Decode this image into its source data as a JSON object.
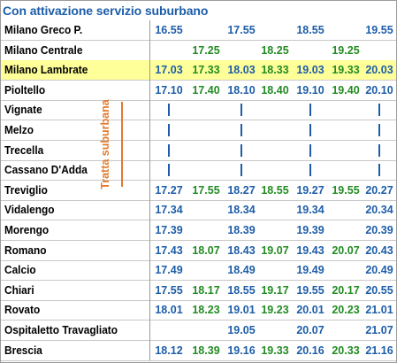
{
  "title": "Con attivazione servizio suburbano",
  "vertical_label": "Tratta suburbana",
  "colors": {
    "blue": "#1d5da8",
    "green": "#228b22",
    "highlight": "#ffff99",
    "orange": "#e07b30"
  },
  "rows": [
    {
      "station": "Milano Greco P.",
      "highlight": false,
      "times": [
        {
          "v": "16.55",
          "c": "blue"
        },
        {
          "v": "",
          "c": "green"
        },
        {
          "v": "17.55",
          "c": "blue"
        },
        {
          "v": "",
          "c": "green"
        },
        {
          "v": "18.55",
          "c": "blue"
        },
        {
          "v": "",
          "c": "green"
        },
        {
          "v": "19.55",
          "c": "blue"
        }
      ]
    },
    {
      "station": "Milano Centrale",
      "highlight": false,
      "times": [
        {
          "v": "",
          "c": "blue"
        },
        {
          "v": "17.25",
          "c": "green"
        },
        {
          "v": "",
          "c": "blue"
        },
        {
          "v": "18.25",
          "c": "green"
        },
        {
          "v": "",
          "c": "blue"
        },
        {
          "v": "19.25",
          "c": "green"
        },
        {
          "v": "",
          "c": "blue"
        }
      ]
    },
    {
      "station": "Milano Lambrate",
      "highlight": true,
      "times": [
        {
          "v": "17.03",
          "c": "blue"
        },
        {
          "v": "17.33",
          "c": "green"
        },
        {
          "v": "18.03",
          "c": "blue"
        },
        {
          "v": "18.33",
          "c": "green"
        },
        {
          "v": "19.03",
          "c": "blue"
        },
        {
          "v": "19.33",
          "c": "green"
        },
        {
          "v": "20.03",
          "c": "blue"
        }
      ]
    },
    {
      "station": "Pioltello",
      "highlight": false,
      "times": [
        {
          "v": "17.10",
          "c": "blue"
        },
        {
          "v": "17.40",
          "c": "green"
        },
        {
          "v": "18.10",
          "c": "blue"
        },
        {
          "v": "18.40",
          "c": "green"
        },
        {
          "v": "19.10",
          "c": "blue"
        },
        {
          "v": "19.40",
          "c": "green"
        },
        {
          "v": "20.10",
          "c": "blue"
        }
      ]
    },
    {
      "station": "Vignate",
      "highlight": false,
      "times": [
        {
          "v": "|",
          "c": "blue"
        },
        {
          "v": "",
          "c": "green"
        },
        {
          "v": "|",
          "c": "blue"
        },
        {
          "v": "",
          "c": "green"
        },
        {
          "v": "|",
          "c": "blue"
        },
        {
          "v": "",
          "c": "green"
        },
        {
          "v": "|",
          "c": "blue"
        }
      ]
    },
    {
      "station": "Melzo",
      "highlight": false,
      "times": [
        {
          "v": "|",
          "c": "blue"
        },
        {
          "v": "",
          "c": "green"
        },
        {
          "v": "|",
          "c": "blue"
        },
        {
          "v": "",
          "c": "green"
        },
        {
          "v": "|",
          "c": "blue"
        },
        {
          "v": "",
          "c": "green"
        },
        {
          "v": "|",
          "c": "blue"
        }
      ]
    },
    {
      "station": "Trecella",
      "highlight": false,
      "times": [
        {
          "v": "|",
          "c": "blue"
        },
        {
          "v": "",
          "c": "green"
        },
        {
          "v": "|",
          "c": "blue"
        },
        {
          "v": "",
          "c": "green"
        },
        {
          "v": "|",
          "c": "blue"
        },
        {
          "v": "",
          "c": "green"
        },
        {
          "v": "|",
          "c": "blue"
        }
      ]
    },
    {
      "station": "Cassano D'Adda",
      "highlight": false,
      "times": [
        {
          "v": "|",
          "c": "blue"
        },
        {
          "v": "",
          "c": "green"
        },
        {
          "v": "|",
          "c": "blue"
        },
        {
          "v": "",
          "c": "green"
        },
        {
          "v": "|",
          "c": "blue"
        },
        {
          "v": "",
          "c": "green"
        },
        {
          "v": "|",
          "c": "blue"
        }
      ]
    },
    {
      "station": "Treviglio",
      "highlight": false,
      "times": [
        {
          "v": "17.27",
          "c": "blue"
        },
        {
          "v": "17.55",
          "c": "green"
        },
        {
          "v": "18.27",
          "c": "blue"
        },
        {
          "v": "18.55",
          "c": "green"
        },
        {
          "v": "19.27",
          "c": "blue"
        },
        {
          "v": "19.55",
          "c": "green"
        },
        {
          "v": "20.27",
          "c": "blue"
        }
      ]
    },
    {
      "station": "Vidalengo",
      "highlight": false,
      "times": [
        {
          "v": "17.34",
          "c": "blue"
        },
        {
          "v": "",
          "c": "green"
        },
        {
          "v": "18.34",
          "c": "blue"
        },
        {
          "v": "",
          "c": "green"
        },
        {
          "v": "19.34",
          "c": "blue"
        },
        {
          "v": "",
          "c": "green"
        },
        {
          "v": "20.34",
          "c": "blue"
        }
      ]
    },
    {
      "station": "Morengo",
      "highlight": false,
      "times": [
        {
          "v": "17.39",
          "c": "blue"
        },
        {
          "v": "",
          "c": "green"
        },
        {
          "v": "18.39",
          "c": "blue"
        },
        {
          "v": "",
          "c": "green"
        },
        {
          "v": "19.39",
          "c": "blue"
        },
        {
          "v": "",
          "c": "green"
        },
        {
          "v": "20.39",
          "c": "blue"
        }
      ]
    },
    {
      "station": "Romano",
      "highlight": false,
      "times": [
        {
          "v": "17.43",
          "c": "blue"
        },
        {
          "v": "18.07",
          "c": "green"
        },
        {
          "v": "18.43",
          "c": "blue"
        },
        {
          "v": "19.07",
          "c": "green"
        },
        {
          "v": "19.43",
          "c": "blue"
        },
        {
          "v": "20.07",
          "c": "green"
        },
        {
          "v": "20.43",
          "c": "blue"
        }
      ]
    },
    {
      "station": "Calcio",
      "highlight": false,
      "times": [
        {
          "v": "17.49",
          "c": "blue"
        },
        {
          "v": "",
          "c": "green"
        },
        {
          "v": "18.49",
          "c": "blue"
        },
        {
          "v": "",
          "c": "green"
        },
        {
          "v": "19.49",
          "c": "blue"
        },
        {
          "v": "",
          "c": "green"
        },
        {
          "v": "20.49",
          "c": "blue"
        }
      ]
    },
    {
      "station": "Chiari",
      "highlight": false,
      "times": [
        {
          "v": "17.55",
          "c": "blue"
        },
        {
          "v": "18.17",
          "c": "green"
        },
        {
          "v": "18.55",
          "c": "blue"
        },
        {
          "v": "19.17",
          "c": "green"
        },
        {
          "v": "19.55",
          "c": "blue"
        },
        {
          "v": "20.17",
          "c": "green"
        },
        {
          "v": "20.55",
          "c": "blue"
        }
      ]
    },
    {
      "station": "Rovato",
      "highlight": false,
      "times": [
        {
          "v": "18.01",
          "c": "blue"
        },
        {
          "v": "18.23",
          "c": "green"
        },
        {
          "v": "19.01",
          "c": "blue"
        },
        {
          "v": "19.23",
          "c": "green"
        },
        {
          "v": "20.01",
          "c": "blue"
        },
        {
          "v": "20.23",
          "c": "green"
        },
        {
          "v": "21.01",
          "c": "blue"
        }
      ]
    },
    {
      "station": "Ospitaletto Travagliato",
      "highlight": false,
      "times": [
        {
          "v": "",
          "c": "blue"
        },
        {
          "v": "",
          "c": "green"
        },
        {
          "v": "19.05",
          "c": "blue"
        },
        {
          "v": "",
          "c": "green"
        },
        {
          "v": "20.07",
          "c": "blue"
        },
        {
          "v": "",
          "c": "green"
        },
        {
          "v": "21.07",
          "c": "blue"
        }
      ]
    },
    {
      "station": "Brescia",
      "highlight": false,
      "times": [
        {
          "v": "18.12",
          "c": "blue"
        },
        {
          "v": "18.39",
          "c": "green"
        },
        {
          "v": "19.16",
          "c": "blue"
        },
        {
          "v": "19.33",
          "c": "green"
        },
        {
          "v": "20.16",
          "c": "blue"
        },
        {
          "v": "20.33",
          "c": "green"
        },
        {
          "v": "21.16",
          "c": "blue"
        }
      ]
    }
  ]
}
